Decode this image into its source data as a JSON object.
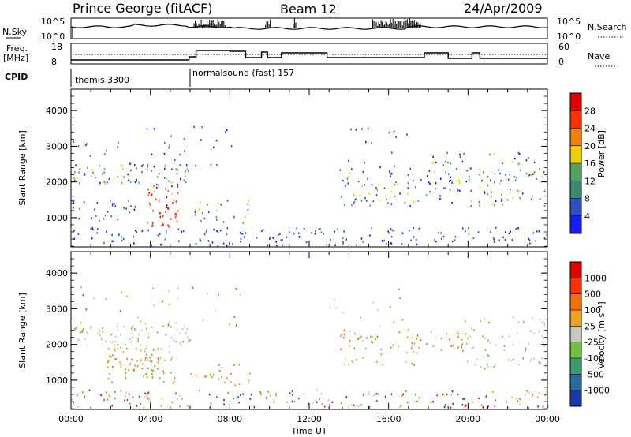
{
  "header": {
    "station": "Prince George (fitACF)",
    "beam": "Beam 12",
    "date": "24/Apr/2009"
  },
  "strip_panels": {
    "nsky_label": "N.Sky",
    "nsky_ticks": [
      "10^5",
      "10^0"
    ],
    "nsearch_label": "N.Search",
    "nsearch_ticks": [
      "10^5",
      "10^0"
    ],
    "freq_label_1": "Freq.",
    "freq_label_2": "[MHz]",
    "freq_ticks": [
      "18",
      "8"
    ],
    "nave_label": "Nave",
    "nave_ticks": [
      "60",
      "0"
    ],
    "cpid_label": "CPID",
    "cpid_segments": [
      "themis 3300",
      "normalsound (fast) 157"
    ]
  },
  "chart_data": [
    {
      "type": "heatmap",
      "name": "power-panel",
      "ylabel": "Slant Range [km]",
      "xlabel": "Time UT",
      "xlim_hours": [
        0,
        24
      ],
      "ylim_km": [
        180,
        4600
      ],
      "x_ticks": [
        "00:00",
        "04:00",
        "08:00",
        "12:00",
        "16:00",
        "20:00",
        "00:00"
      ],
      "y_ticks": [
        1000,
        2000,
        3000,
        4000
      ],
      "colorbar": {
        "label": "Power [dB]",
        "ticks": [
          "4",
          "8",
          "12",
          "16",
          "20",
          "24",
          "28"
        ],
        "colors": [
          "#1a1aff",
          "#3050c0",
          "#3a8a70",
          "#50a060",
          "#f0d000",
          "#f08000",
          "#ff3000",
          "#e00000"
        ]
      }
    },
    {
      "type": "heatmap",
      "name": "velocity-panel",
      "ylabel": "Slant Range [km]",
      "xlabel": "Time UT",
      "xlim_hours": [
        0,
        24
      ],
      "ylim_km": [
        180,
        4600
      ],
      "x_ticks": [
        "00:00",
        "04:00",
        "08:00",
        "12:00",
        "16:00",
        "20:00",
        "00:00"
      ],
      "y_ticks": [
        1000,
        2000,
        3000,
        4000
      ],
      "colorbar": {
        "label": "Velocity [m s⁻¹]",
        "ticks": [
          "1000",
          "500",
          "100",
          "25",
          "-25",
          "-100",
          "-500",
          "-1000"
        ],
        "colors": [
          "#1a3aaa",
          "#2a6a9a",
          "#3a9a70",
          "#70c040",
          "#c8c8c0",
          "#f0a020",
          "#f07000",
          "#ff3000",
          "#e00000"
        ]
      }
    }
  ]
}
